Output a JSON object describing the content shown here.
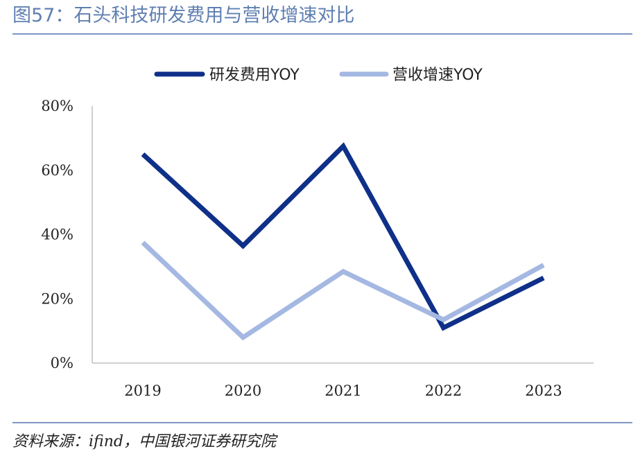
{
  "header": {
    "title": "图57：石头科技研发费用与营收增速对比"
  },
  "footer": {
    "source": "资料来源：ifind，中国银河证券研究院"
  },
  "colors": {
    "title": "#5f7fb1",
    "rule": "#7e96c2",
    "axis": "#bfbfbf"
  },
  "chart_data": {
    "type": "line",
    "title": "",
    "xlabel": "",
    "ylabel": "",
    "categories": [
      "2019",
      "2020",
      "2021",
      "2022",
      "2023"
    ],
    "ylim": [
      0,
      80
    ],
    "yticks": [
      0,
      20,
      40,
      60,
      80
    ],
    "ytick_labels": [
      "0%",
      "20%",
      "40%",
      "60%",
      "80%"
    ],
    "grid": false,
    "legend_position": "top-center",
    "series": [
      {
        "name": "研发费用YOY",
        "color": "#0f3088",
        "values": [
          65,
          36.5,
          67.5,
          11,
          26.5
        ]
      },
      {
        "name": "营收增速YOY",
        "color": "#a4b8e2",
        "values": [
          37.5,
          8,
          28.5,
          13.5,
          30.5
        ]
      }
    ]
  }
}
